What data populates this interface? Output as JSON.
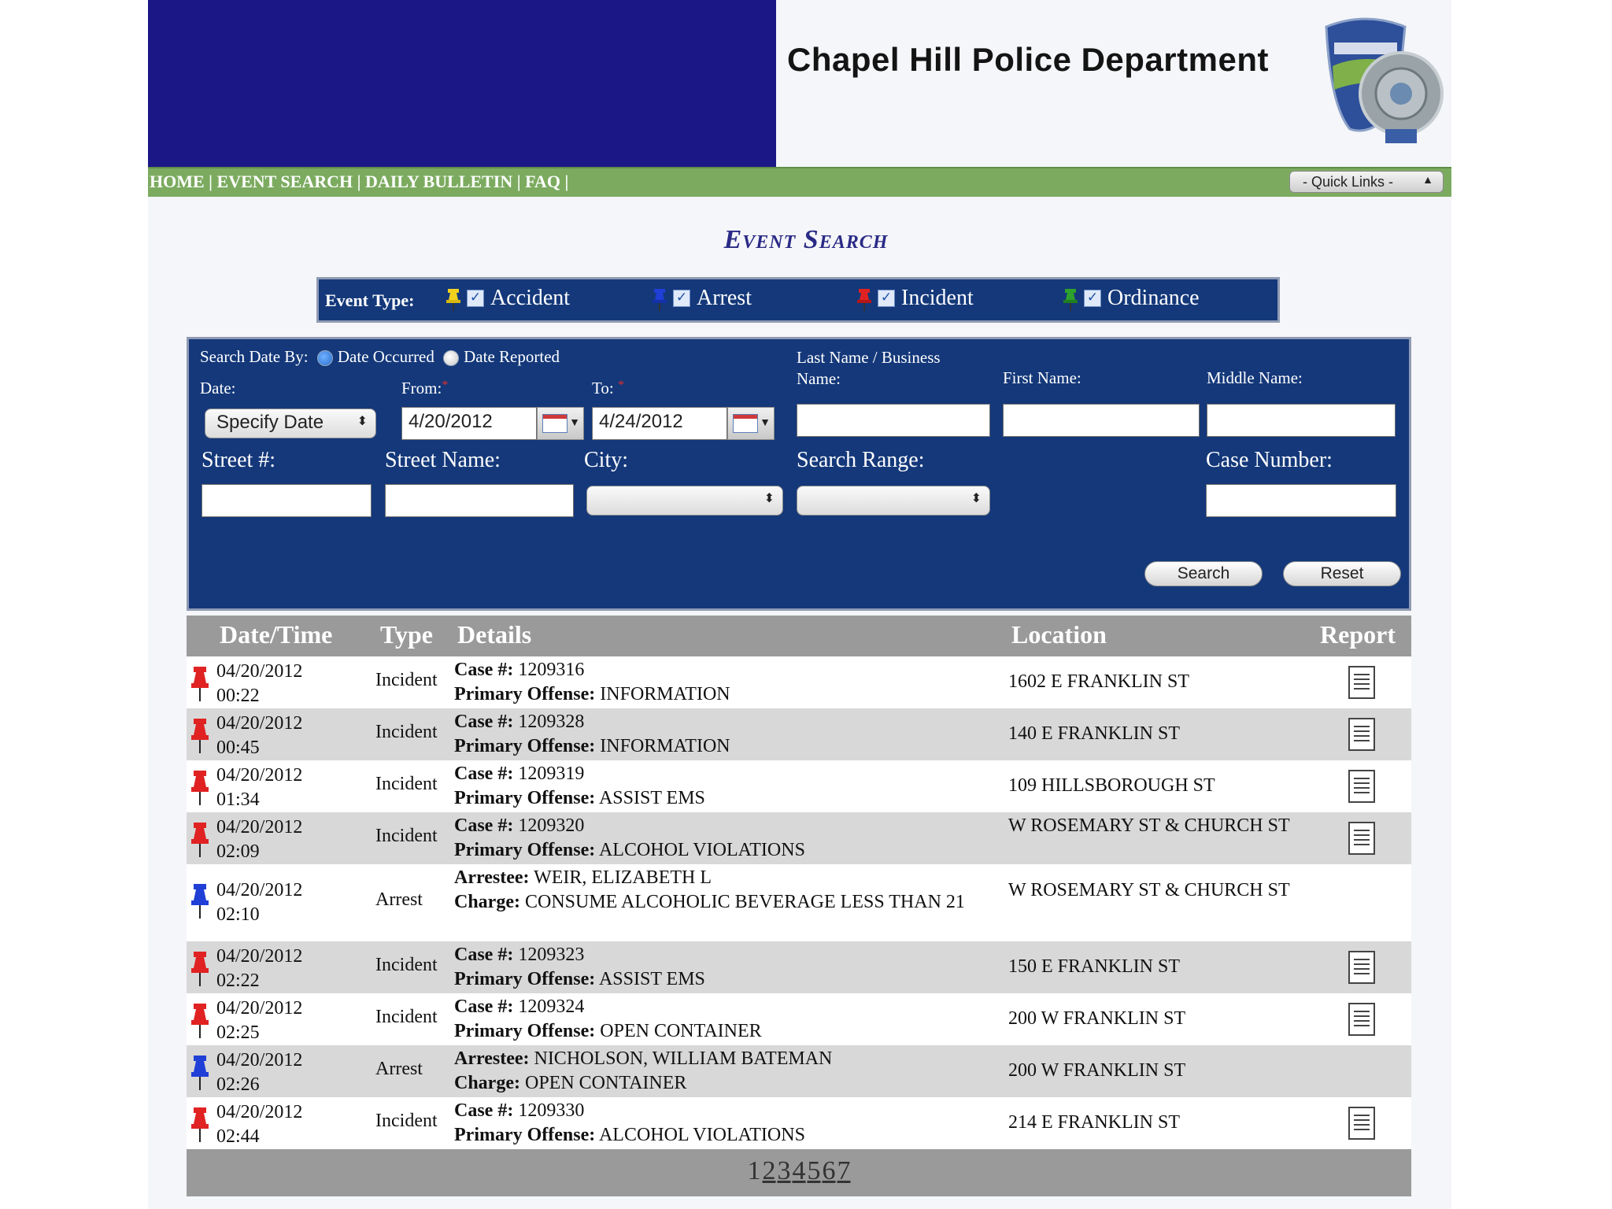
{
  "header": {
    "title": "Chapel Hill Police Department"
  },
  "nav": {
    "items": [
      "HOME",
      "EVENT SEARCH",
      "DAILY BULLETIN",
      "FAQ"
    ],
    "quick_links": "- Quick Links -"
  },
  "page_title": "Event Search",
  "event_types": {
    "label": "Event Type:",
    "items": [
      {
        "label": "Accident",
        "color": "#f2d21f"
      },
      {
        "label": "Arrest",
        "color": "#1f3fd6"
      },
      {
        "label": "Incident",
        "color": "#e02222"
      },
      {
        "label": "Ordinance",
        "color": "#2ea02e"
      }
    ]
  },
  "form": {
    "search_date_by": "Search Date By:",
    "date_occurred": "Date Occurred",
    "date_reported": "Date Reported",
    "date_label": "Date:",
    "date_select": "Specify Date",
    "from_label": "From:",
    "from_value": "4/20/2012",
    "to_label": "To:",
    "to_value": "4/24/2012",
    "last_name_label_1": "Last Name / Business",
    "last_name_label_2": "Name:",
    "first_name_label": "First Name:",
    "middle_name_label": "Middle Name:",
    "street_no_label": "Street #:",
    "street_name_label": "Street Name:",
    "city_label": "City:",
    "search_range_label": "Search Range:",
    "case_number_label": "Case Number:",
    "search_button": "Search",
    "reset_button": "Reset"
  },
  "table": {
    "headers": {
      "datetime": "Date/Time",
      "type": "Type",
      "details": "Details",
      "location": "Location",
      "report": "Report"
    },
    "rows": [
      {
        "date": "04/20/2012",
        "time": "00:22",
        "type": "Incident",
        "k1": "Case #:",
        "v1": "1209316",
        "k2": "Primary Offense:",
        "v2": "INFORMATION",
        "location": "1602 E FRANKLIN ST",
        "has_report": true
      },
      {
        "date": "04/20/2012",
        "time": "00:45",
        "type": "Incident",
        "k1": "Case #:",
        "v1": "1209328",
        "k2": "Primary Offense:",
        "v2": "INFORMATION",
        "location": "140 E FRANKLIN ST",
        "has_report": true
      },
      {
        "date": "04/20/2012",
        "time": "01:34",
        "type": "Incident",
        "k1": "Case #:",
        "v1": "1209319",
        "k2": "Primary Offense:",
        "v2": "ASSIST EMS",
        "location": "109 HILLSBOROUGH ST",
        "has_report": true
      },
      {
        "date": "04/20/2012",
        "time": "02:09",
        "type": "Incident",
        "k1": "Case #:",
        "v1": "1209320",
        "k2": "Primary Offense:",
        "v2": "ALCOHOL VIOLATIONS",
        "location": "W ROSEMARY ST & CHURCH ST",
        "has_report": true
      },
      {
        "date": "04/20/2012",
        "time": "02:10",
        "type": "Arrest",
        "k1": "Arrestee:",
        "v1": "WEIR, ELIZABETH L",
        "k2": "Charge:",
        "v2": "CONSUME ALCOHOLIC BEVERAGE LESS THAN 21",
        "location": "W ROSEMARY ST & CHURCH ST",
        "has_report": false
      },
      {
        "date": "04/20/2012",
        "time": "02:22",
        "type": "Incident",
        "k1": "Case #:",
        "v1": "1209323",
        "k2": "Primary Offense:",
        "v2": "ASSIST EMS",
        "location": "150 E FRANKLIN ST",
        "has_report": true
      },
      {
        "date": "04/20/2012",
        "time": "02:25",
        "type": "Incident",
        "k1": "Case #:",
        "v1": "1209324",
        "k2": "Primary Offense:",
        "v2": "OPEN CONTAINER",
        "location": "200 W FRANKLIN ST",
        "has_report": true
      },
      {
        "date": "04/20/2012",
        "time": "02:26",
        "type": "Arrest",
        "k1": "Arrestee:",
        "v1": "NICHOLSON, WILLIAM BATEMAN",
        "k2": "Charge:",
        "v2": "OPEN CONTAINER",
        "location": "200 W FRANKLIN ST",
        "has_report": false
      },
      {
        "date": "04/20/2012",
        "time": "02:44",
        "type": "Incident",
        "k1": "Case #:",
        "v1": "1209330",
        "k2": "Primary Offense:",
        "v2": "ALCOHOL VIOLATIONS",
        "location": "214 E FRANKLIN ST",
        "has_report": true
      }
    ]
  },
  "pagination": {
    "pages": [
      "1",
      "2",
      "3",
      "4",
      "5",
      "6",
      "7"
    ],
    "current": "1"
  }
}
